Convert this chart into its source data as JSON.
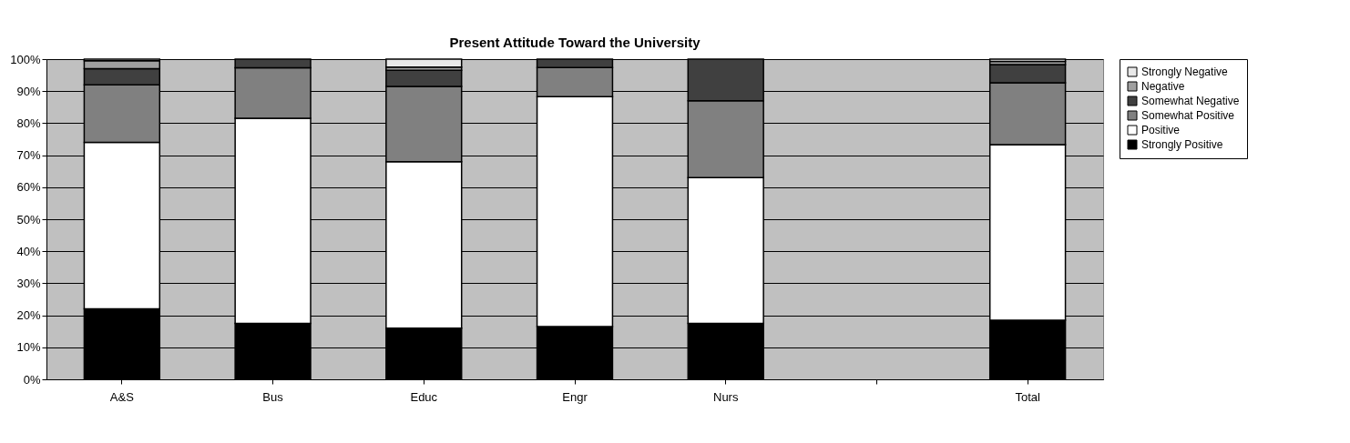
{
  "chart_data": {
    "type": "bar",
    "title": "Present Attitude Toward the University",
    "stacked": true,
    "categories": [
      "A&S",
      "Bus",
      "Educ",
      "Engr",
      "Nurs",
      null,
      "Total"
    ],
    "series": [
      {
        "name": "Strongly Positive",
        "color": "#000000",
        "values": [
          22,
          17.5,
          16,
          16.5,
          17.5,
          null,
          18.5
        ]
      },
      {
        "name": "Positive",
        "color": "#ffffff",
        "values": [
          52,
          64,
          52,
          71.8,
          45.5,
          null,
          54.8
        ]
      },
      {
        "name": "Somewhat Positive",
        "color": "#808080",
        "values": [
          18,
          15.8,
          23.5,
          9.1,
          24,
          null,
          19.3
        ]
      },
      {
        "name": "Somewhat Negative",
        "color": "#404040",
        "values": [
          5,
          2.7,
          5,
          2.6,
          13,
          null,
          5.7
        ]
      },
      {
        "name": "Negative",
        "color": "#a0a0a0",
        "values": [
          2.5,
          0,
          1,
          0,
          0,
          null,
          1
        ]
      },
      {
        "name": "Strongly Negative",
        "color": "#e8e8e8",
        "values": [
          0.5,
          0,
          2.5,
          0,
          0,
          null,
          0.7
        ]
      }
    ],
    "ylim": [
      0,
      100
    ],
    "yticks": [
      {
        "value": 0,
        "label": "0%"
      },
      {
        "value": 10,
        "label": "10%"
      },
      {
        "value": 20,
        "label": "20%"
      },
      {
        "value": 30,
        "label": "30%"
      },
      {
        "value": 40,
        "label": "40%"
      },
      {
        "value": 50,
        "label": "50%"
      },
      {
        "value": 60,
        "label": "60%"
      },
      {
        "value": 70,
        "label": "70%"
      },
      {
        "value": 80,
        "label": "80%"
      },
      {
        "value": 90,
        "label": "90%"
      },
      {
        "value": 100,
        "label": "100%"
      }
    ],
    "grid": "y",
    "legend": "right"
  }
}
